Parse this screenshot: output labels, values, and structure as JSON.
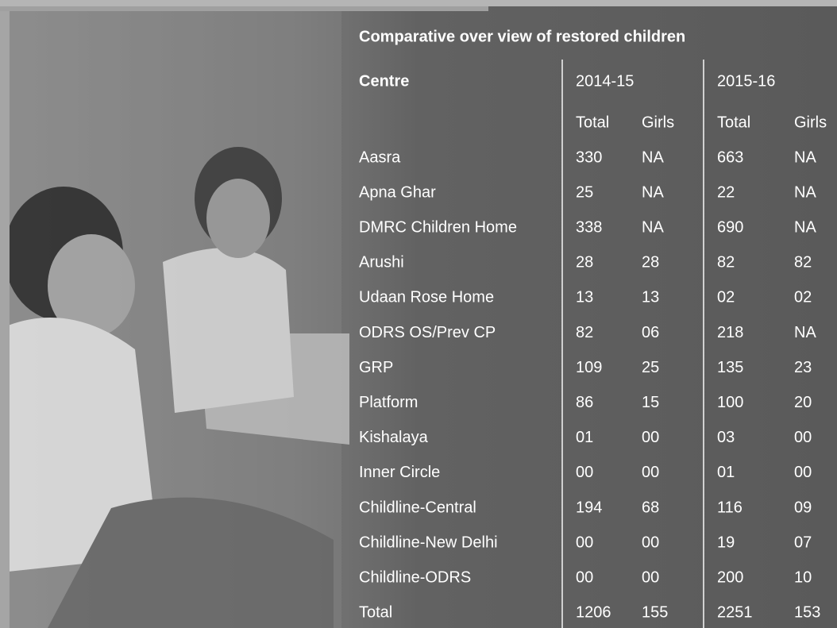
{
  "title": "Comparative over view of restored children",
  "header": {
    "centre": "Centre",
    "years": [
      "2014-15",
      "2015-16"
    ],
    "columns": [
      "Total",
      "Girls",
      "Total",
      "Girls"
    ]
  },
  "rows": [
    [
      "Aasra",
      "330",
      "NA",
      "663",
      "NA"
    ],
    [
      "Apna Ghar",
      "25",
      "NA",
      "22",
      "NA"
    ],
    [
      "DMRC  Children Home",
      "338",
      "NA",
      "690",
      "NA"
    ],
    [
      "Arushi",
      "28",
      "28",
      "82",
      "82"
    ],
    [
      "Udaan Rose Home",
      "13",
      "13",
      "02",
      "02"
    ],
    [
      "ODRS OS/Prev CP",
      "82",
      "06",
      "218",
      "NA"
    ],
    [
      "GRP",
      "109",
      "25",
      "135",
      "23"
    ],
    [
      "Platform",
      "86",
      "15",
      "100",
      "20"
    ],
    [
      "Kishalaya",
      "01",
      "00",
      "03",
      "00"
    ],
    [
      "Inner Circle",
      "00",
      "00",
      "01",
      "00"
    ],
    [
      "Childline-Central",
      "194",
      "68",
      "116",
      "09"
    ],
    [
      "Childline-New Delhi",
      "00",
      "00",
      "19",
      "07"
    ],
    [
      "Childline-ODRS",
      "00",
      "00",
      "200",
      "10"
    ],
    [
      "Total",
      "1206",
      "155",
      "2251",
      "153"
    ]
  ]
}
